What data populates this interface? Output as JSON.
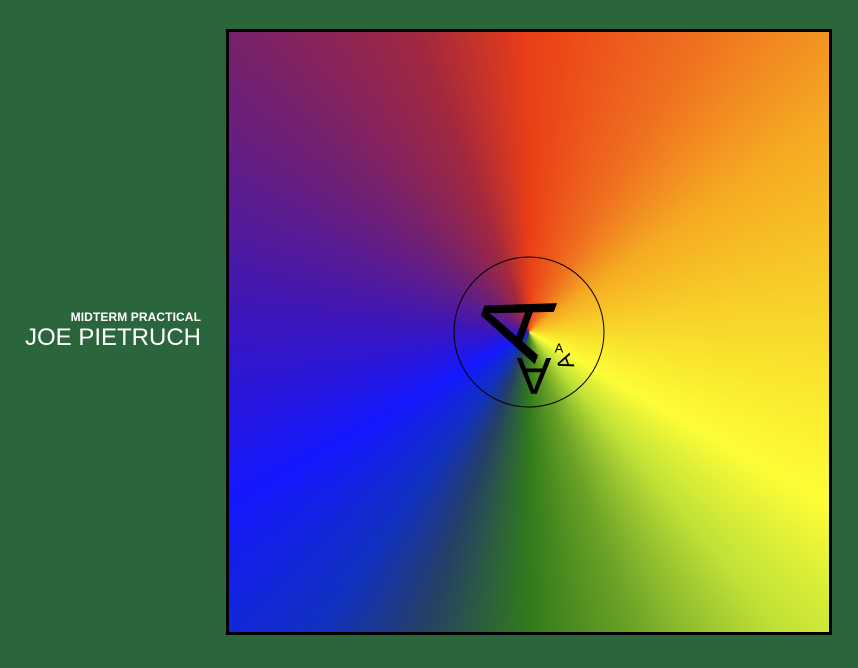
{
  "header": {
    "subtitle": "MIDTERM PRACTICAL",
    "name": "JOE PIETRUCH"
  },
  "artwork": {
    "glyph_large": "A",
    "glyph_medium": "A",
    "glyph_small": "A",
    "glyph_tiny": "A",
    "colors": {
      "background": "#2b653b",
      "frame": "#000000",
      "gradient": [
        "#ea3e16",
        "#f5ab22",
        "#fdfd37",
        "#317a1b",
        "#1418fe",
        "#702073"
      ]
    }
  }
}
